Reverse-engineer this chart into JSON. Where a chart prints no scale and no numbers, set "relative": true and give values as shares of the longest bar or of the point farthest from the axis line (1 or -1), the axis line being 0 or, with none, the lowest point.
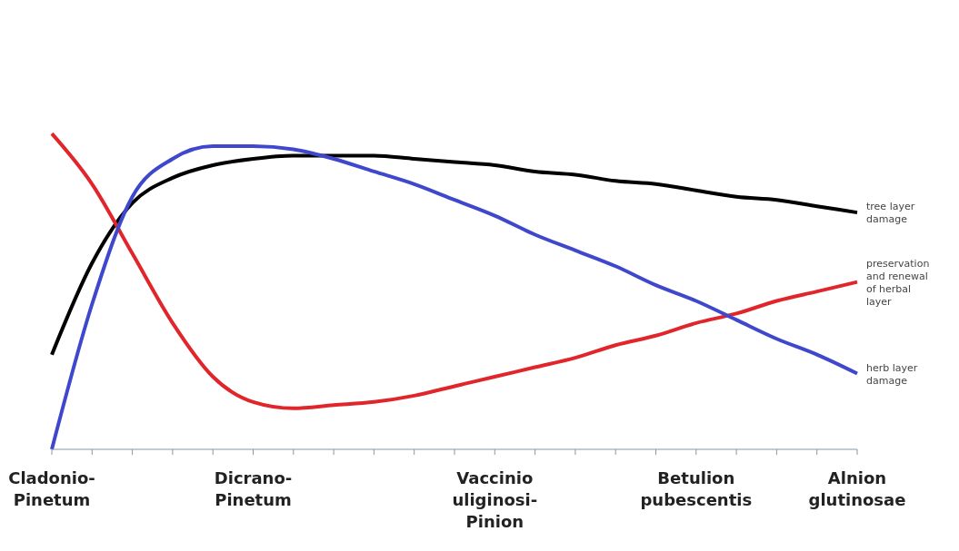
{
  "chart_data": {
    "type": "line",
    "relative": true,
    "marker": "none",
    "line_style": "solid",
    "categories": [
      "Cladonio-Pinetum",
      null,
      null,
      null,
      null,
      "Dicrano-Pinetum",
      null,
      null,
      null,
      null,
      null,
      "Vaccinio uliginosi-Pinion",
      null,
      null,
      null,
      null,
      "Betulion pubescentis",
      null,
      null,
      null,
      "Alnion glutinosae"
    ],
    "series": [
      {
        "name": "tree layer damage",
        "color": "#000000",
        "values": [
          0.3,
          0.59,
          0.78,
          0.86,
          0.9,
          0.92,
          0.93,
          0.93,
          0.93,
          0.92,
          0.91,
          0.9,
          0.88,
          0.87,
          0.85,
          0.84,
          0.82,
          0.8,
          0.79,
          0.77,
          0.75
        ]
      },
      {
        "name": "preservation and renewal of herbal layer",
        "color": "#e0262b",
        "values": [
          1,
          0.84,
          0.62,
          0.4,
          0.23,
          0.15,
          0.13,
          0.14,
          0.15,
          0.17,
          0.2,
          0.23,
          0.26,
          0.29,
          0.33,
          0.36,
          0.4,
          0.43,
          0.47,
          0.5,
          0.53
        ]
      },
      {
        "name": "herb layer damage",
        "color": "#3f48cc",
        "values": [
          0,
          0.46,
          0.8,
          0.92,
          0.96,
          0.96,
          0.95,
          0.92,
          0.88,
          0.84,
          0.79,
          0.74,
          0.68,
          0.63,
          0.58,
          0.52,
          0.47,
          0.41,
          0.35,
          0.3,
          0.24
        ]
      }
    ]
  }
}
